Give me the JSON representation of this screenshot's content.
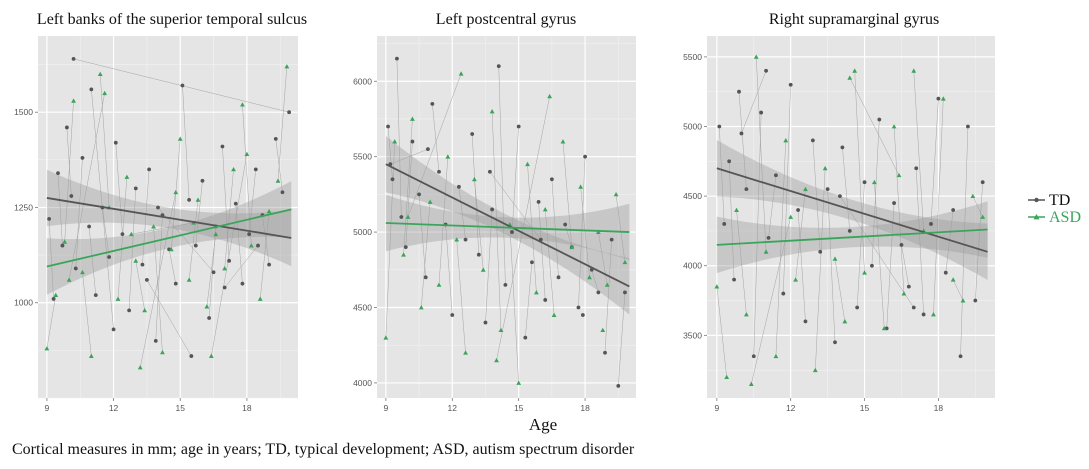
{
  "caption": "Cortical measures in mm; age in years; TD, typical development; ASD, autism spectrum disorder",
  "chart_data": [
    {
      "type": "scatter",
      "title": "Left banks of the superior temporal sulcus",
      "xlabel": "",
      "ylabel": "",
      "xlim": [
        8.6,
        20.3
      ],
      "ylim": [
        750,
        1700
      ],
      "xticks": [
        9,
        12,
        15,
        18
      ],
      "yticks": [
        1000,
        1250,
        1500
      ],
      "series": [
        {
          "name": "TD",
          "color": "#555555",
          "x": [
            9.1,
            9.3,
            9.5,
            9.7,
            9.9,
            10.1,
            10.3,
            10.6,
            10.9,
            11.2,
            11.5,
            11.8,
            12.1,
            12.4,
            12.7,
            13.0,
            13.3,
            13.6,
            13.9,
            14.2,
            14.5,
            14.8,
            15.1,
            15.4,
            15.7,
            16.0,
            16.3,
            16.6,
            16.9,
            17.2,
            17.5,
            17.8,
            18.1,
            18.4,
            18.7,
            19.0,
            19.3,
            19.6,
            19.9,
            10.2,
            11.0,
            12.0,
            13.5,
            15.5,
            17.0,
            18.5,
            14.0,
            16.5
          ],
          "y": [
            1220,
            1010,
            1340,
            1150,
            1460,
            1280,
            1090,
            1380,
            1200,
            1020,
            1250,
            1120,
            1420,
            1180,
            980,
            1300,
            1100,
            1350,
            900,
            1230,
            1140,
            1050,
            1570,
            1270,
            1150,
            1320,
            960,
            1200,
            1410,
            1110,
            1260,
            1050,
            1180,
            1350,
            1230,
            1100,
            1430,
            1290,
            1500,
            1640,
            1560,
            930,
            1060,
            860,
            1040,
            1150,
            1250,
            1080
          ],
          "trend": {
            "x": [
              9.0,
              20.0
            ],
            "y": [
              1275,
              1170
            ]
          }
        },
        {
          "name": "ASD",
          "color": "#3aa55a",
          "x": [
            9.0,
            9.4,
            9.8,
            10.2,
            10.6,
            11.0,
            11.4,
            11.8,
            12.2,
            12.6,
            13.0,
            13.4,
            13.8,
            14.2,
            14.6,
            15.0,
            15.4,
            15.8,
            16.2,
            16.6,
            17.0,
            17.4,
            17.8,
            18.2,
            18.6,
            19.0,
            19.4,
            19.8,
            10.0,
            11.6,
            13.2,
            14.8,
            16.4,
            18.0,
            12.8,
            15.6
          ],
          "y": [
            880,
            1020,
            1160,
            1530,
            1080,
            860,
            1600,
            1250,
            1010,
            1330,
            1110,
            980,
            1200,
            870,
            1140,
            1430,
            1060,
            1270,
            990,
            1180,
            1090,
            1350,
            1520,
            1150,
            1010,
            1240,
            1320,
            1620,
            1060,
            1550,
            830,
            1290,
            860,
            1390,
            1180,
            1210
          ],
          "trend": {
            "x": [
              9.0,
              20.0
            ],
            "y": [
              1095,
              1245
            ]
          }
        }
      ]
    },
    {
      "type": "scatter",
      "title": "Left postcentral gyrus",
      "xlabel": "",
      "ylabel": "",
      "xlim": [
        8.6,
        20.3
      ],
      "ylim": [
        3900,
        6300
      ],
      "xticks": [
        9,
        12,
        15,
        18
      ],
      "yticks": [
        4000,
        4500,
        5000,
        5500,
        6000
      ],
      "series": [
        {
          "name": "TD",
          "color": "#555555",
          "x": [
            9.1,
            9.3,
            9.5,
            9.7,
            9.9,
            10.2,
            10.5,
            10.8,
            11.1,
            11.4,
            11.7,
            12.0,
            12.3,
            12.6,
            12.9,
            13.2,
            13.5,
            13.8,
            14.1,
            14.4,
            14.7,
            15.0,
            15.3,
            15.6,
            15.9,
            16.2,
            16.5,
            16.8,
            17.1,
            17.4,
            17.7,
            18.0,
            18.3,
            18.6,
            18.9,
            19.2,
            19.5,
            19.8,
            9.2,
            10.9,
            13.7,
            16.0,
            17.9
          ],
          "y": [
            5700,
            5350,
            6150,
            5100,
            4900,
            5600,
            5250,
            4700,
            5850,
            5400,
            5050,
            4450,
            5300,
            4950,
            5650,
            4850,
            4400,
            5150,
            6100,
            4650,
            5000,
            5700,
            4300,
            4800,
            5200,
            4550,
            5350,
            4700,
            5050,
            4900,
            4500,
            5500,
            4750,
            4600,
            4200,
            4950,
            3980,
            4600,
            5450,
            5550,
            5400,
            4950,
            4450
          ],
          "trend": {
            "x": [
              9.0,
              20.0
            ],
            "y": [
              5450,
              4640
            ]
          }
        },
        {
          "name": "ASD",
          "color": "#3aa55a",
          "x": [
            9.0,
            9.4,
            9.8,
            10.2,
            10.6,
            11.0,
            11.4,
            11.8,
            12.2,
            12.6,
            13.0,
            13.4,
            13.8,
            14.2,
            14.6,
            15.0,
            15.4,
            15.8,
            16.2,
            16.6,
            17.0,
            17.4,
            17.8,
            18.2,
            18.6,
            19.0,
            19.4,
            19.8,
            10.0,
            12.4,
            14.0,
            16.4,
            18.8
          ],
          "y": [
            4300,
            5600,
            4850,
            5750,
            4500,
            5200,
            4650,
            5500,
            4950,
            4200,
            5350,
            4750,
            5800,
            4350,
            5050,
            4000,
            5450,
            4600,
            5150,
            4450,
            5600,
            4900,
            5300,
            4700,
            5000,
            4650,
            5250,
            4800,
            5100,
            6050,
            4150,
            5900,
            4350
          ],
          "trend": {
            "x": [
              9.0,
              20.0
            ],
            "y": [
              5060,
              5000
            ]
          }
        }
      ]
    },
    {
      "type": "scatter",
      "title": "Right supramarginal gyrus",
      "xlabel": "",
      "ylabel": "",
      "xlim": [
        8.6,
        20.3
      ],
      "ylim": [
        3050,
        5650
      ],
      "xticks": [
        9,
        12,
        15,
        18
      ],
      "yticks": [
        3500,
        4000,
        4500,
        5000,
        5500
      ],
      "series": [
        {
          "name": "TD",
          "color": "#555555",
          "x": [
            9.1,
            9.3,
            9.5,
            9.7,
            9.9,
            10.2,
            10.5,
            10.8,
            11.1,
            11.4,
            11.7,
            12.0,
            12.3,
            12.6,
            12.9,
            13.2,
            13.5,
            13.8,
            14.1,
            14.4,
            14.7,
            15.0,
            15.3,
            15.6,
            15.9,
            16.2,
            16.5,
            16.8,
            17.1,
            17.4,
            17.7,
            18.0,
            18.3,
            18.6,
            18.9,
            19.2,
            19.5,
            19.8,
            10.0,
            11.0,
            14.0,
            17.0
          ],
          "y": [
            5000,
            4300,
            4750,
            3900,
            5250,
            4550,
            3350,
            5100,
            4200,
            4650,
            3800,
            5300,
            4400,
            3600,
            4900,
            4100,
            4550,
            3450,
            4850,
            4250,
            3700,
            4600,
            4000,
            5050,
            3550,
            4450,
            4150,
            3850,
            4700,
            3650,
            4300,
            5200,
            3950,
            4400,
            3350,
            5000,
            3750,
            4600,
            4950,
            5400,
            4500,
            3700
          ],
          "trend": {
            "x": [
              9.0,
              20.0
            ],
            "y": [
              4700,
              4100
            ]
          }
        },
        {
          "name": "ASD",
          "color": "#3aa55a",
          "x": [
            9.0,
            9.4,
            9.8,
            10.2,
            10.6,
            11.0,
            11.4,
            11.8,
            12.2,
            12.6,
            13.0,
            13.4,
            13.8,
            14.2,
            14.6,
            15.0,
            15.4,
            15.8,
            16.2,
            16.6,
            17.0,
            17.4,
            17.8,
            18.2,
            18.6,
            19.0,
            19.4,
            19.8,
            10.4,
            12.0,
            14.4,
            16.4
          ],
          "y": [
            3850,
            3200,
            4400,
            3650,
            5500,
            4100,
            3350,
            4900,
            3900,
            4550,
            3250,
            4700,
            4050,
            3600,
            5400,
            3950,
            4600,
            3550,
            5000,
            3800,
            5400,
            4250,
            3650,
            5200,
            3900,
            3750,
            4500,
            4350,
            3150,
            4350,
            5350,
            4650
          ],
          "trend": {
            "x": [
              9.0,
              20.0
            ],
            "y": [
              4150,
              4260
            ]
          }
        }
      ]
    }
  ],
  "shared_xlabel": "Age",
  "legend": [
    {
      "label": "TD",
      "color": "#555555",
      "marker": "circle"
    },
    {
      "label": "ASD",
      "color": "#3aa55a",
      "marker": "triangle"
    }
  ]
}
